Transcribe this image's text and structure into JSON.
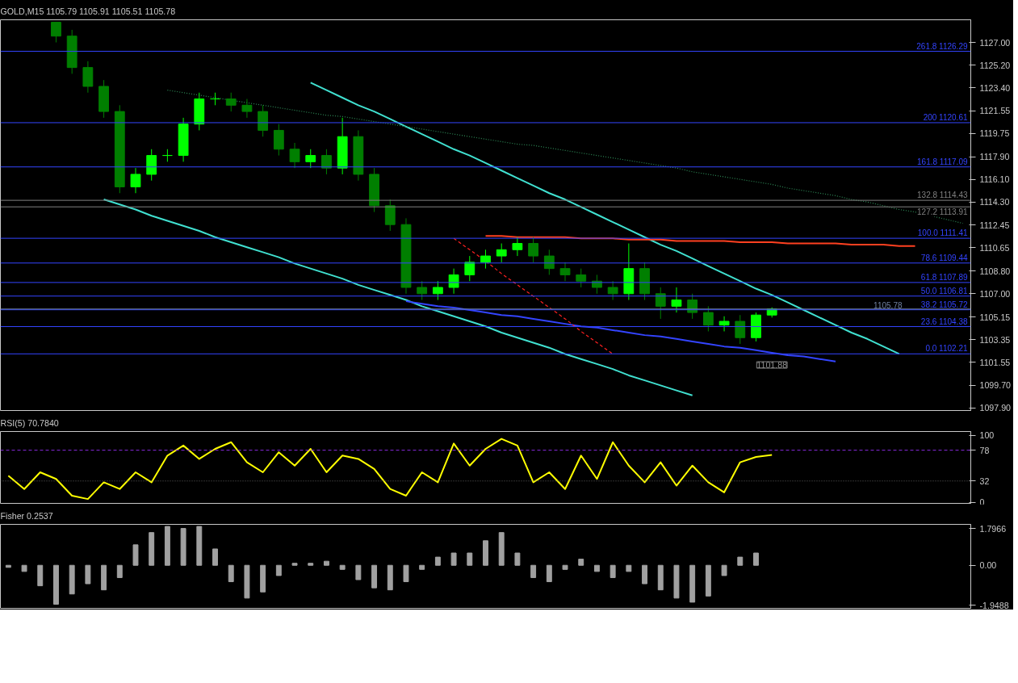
{
  "chart_data": [
    {
      "type": "candlestick",
      "title": "GOLD,M15 1105.79 1105.91 1105.51 1105.78",
      "colors": [
        null,
        null,
        null,
        "#007f00",
        "#007f00",
        "#007f00",
        "#007f00",
        "#007f00",
        "#00ff00",
        "#00ff00",
        "#00ff00",
        "#00ff00",
        "#00ff00",
        "#00ff00",
        "#007f00",
        "#007f00",
        "#007f00",
        "#007f00",
        "#007f00",
        "#00ff00",
        "#007f00",
        "#00ff00",
        "#007f00",
        "#007f00",
        "#007f00",
        "#007f00",
        "#007f00",
        "#00ff00",
        "#00ff00",
        "#00ff00",
        "#00ff00",
        "#00ff00",
        "#00ff00",
        "#007f00",
        "#007f00",
        "#007f00",
        "#007f00",
        "#007f00",
        "#007f00",
        "#00ff00",
        "#007f00",
        "#007f00",
        "#00ff00",
        "#007f00",
        "#007f00",
        "#00ff00",
        "#007f00",
        "#00ff00",
        "#00ff00",
        null,
        null,
        null,
        null,
        null,
        null,
        null,
        null,
        null,
        null,
        null,
        null
      ],
      "categories": [
        null,
        null,
        null,
        null,
        null,
        null,
        null,
        null,
        null,
        null,
        null,
        null,
        null,
        null,
        null,
        null,
        null,
        null,
        null,
        null,
        null,
        null,
        null,
        null,
        null,
        null,
        null,
        null,
        null,
        null,
        null,
        null,
        null,
        null,
        null,
        null,
        null,
        null,
        null,
        null,
        null,
        null,
        null,
        null,
        null,
        null,
        null,
        null,
        null,
        null,
        null,
        null,
        null,
        null,
        null,
        null,
        null,
        null,
        null,
        null,
        null
      ],
      "ohlc": [
        null,
        null,
        null,
        [
          1128.6,
          1128.6,
          1127.0,
          1127.5
        ],
        [
          1127.5,
          1128.0,
          1124.5,
          1125.0
        ],
        [
          1125.0,
          1125.5,
          1123.0,
          1123.5
        ],
        [
          1123.5,
          1124.0,
          1121.0,
          1121.5
        ],
        [
          1121.5,
          1122.0,
          1115.0,
          1115.5
        ],
        [
          1115.5,
          1117.0,
          1115.0,
          1116.5
        ],
        [
          1116.5,
          1118.5,
          1116.0,
          1118.0
        ],
        [
          1118.0,
          1118.5,
          1117.5,
          1118.0
        ],
        [
          1118.0,
          1121.0,
          1117.5,
          1120.5
        ],
        [
          1120.5,
          1123.0,
          1120.0,
          1122.5
        ],
        [
          1122.5,
          1123.0,
          1122.0,
          1122.5
        ],
        [
          1122.5,
          1123.0,
          1121.5,
          1122.0
        ],
        [
          1122.0,
          1122.5,
          1121.0,
          1121.5
        ],
        [
          1121.5,
          1122.0,
          1119.5,
          1120.0
        ],
        [
          1120.0,
          1120.5,
          1118.0,
          1118.5
        ],
        [
          1118.5,
          1119.0,
          1117.0,
          1117.5
        ],
        [
          1117.5,
          1118.5,
          1117.0,
          1118.0
        ],
        [
          1118.0,
          1118.5,
          1116.5,
          1117.0
        ],
        [
          1117.0,
          1121.0,
          1116.5,
          1119.5
        ],
        [
          1119.5,
          1120.0,
          1116.0,
          1116.5
        ],
        [
          1116.5,
          1117.0,
          1113.5,
          1114.0
        ],
        [
          1114.0,
          1114.5,
          1112.0,
          1112.5
        ],
        [
          1112.5,
          1113.0,
          1107.0,
          1107.5
        ],
        [
          1107.5,
          1108.0,
          1106.5,
          1107.0
        ],
        [
          1107.0,
          1108.0,
          1106.5,
          1107.5
        ],
        [
          1107.5,
          1109.0,
          1107.0,
          1108.5
        ],
        [
          1108.5,
          1110.0,
          1108.0,
          1109.5
        ],
        [
          1109.5,
          1110.5,
          1109.0,
          1110.0
        ],
        [
          1110.0,
          1111.0,
          1109.5,
          1110.5
        ],
        [
          1110.5,
          1111.5,
          1110.0,
          1111.0
        ],
        [
          1111.0,
          1111.5,
          1109.5,
          1110.0
        ],
        [
          1110.0,
          1110.5,
          1108.5,
          1109.0
        ],
        [
          1109.0,
          1109.5,
          1108.0,
          1108.5
        ],
        [
          1108.5,
          1109.0,
          1107.5,
          1108.0
        ],
        [
          1108.0,
          1108.5,
          1107.0,
          1107.5
        ],
        [
          1107.5,
          1108.0,
          1106.5,
          1107.0
        ],
        [
          1107.0,
          1111.0,
          1106.5,
          1109.0
        ],
        [
          1109.0,
          1109.5,
          1106.5,
          1107.0
        ],
        [
          1107.0,
          1107.5,
          1105.0,
          1106.0
        ],
        [
          1106.0,
          1107.5,
          1105.5,
          1106.5
        ],
        [
          1106.5,
          1107.0,
          1105.0,
          1105.5
        ],
        [
          1105.5,
          1106.0,
          1104.0,
          1104.5
        ],
        [
          1104.5,
          1105.2,
          1104.0,
          1104.8
        ],
        [
          1104.8,
          1105.3,
          1103.0,
          1103.5
        ],
        [
          1103.5,
          1105.5,
          1103.2,
          1105.3
        ],
        [
          1105.3,
          1105.91,
          1105.1,
          1105.78
        ],
        null,
        null,
        null,
        null,
        null,
        null,
        null,
        null,
        null,
        null,
        null,
        null
      ],
      "series": [
        {
          "type": "line",
          "color": "#40e0d0",
          "values": [
            null,
            null,
            null,
            null,
            null,
            null,
            null,
            null,
            null,
            null,
            null,
            null,
            null,
            null,
            null,
            null,
            null,
            null,
            null,
            1123.8,
            1123.2,
            1122.6,
            1122.0,
            1121.5,
            1120.9,
            1120.3,
            1119.7,
            1119.1,
            1118.5,
            1118.0,
            1117.4,
            1116.8,
            1116.2,
            1115.6,
            1115.0,
            1114.5,
            1113.9,
            1113.3,
            1112.7,
            1112.1,
            1111.5,
            1110.9,
            1110.4,
            1109.8,
            1109.2,
            1108.6,
            1108.0,
            1107.4,
            1106.9,
            1106.3,
            1105.7,
            1105.1,
            1104.5,
            1103.9,
            1103.4,
            1102.8,
            1102.2,
            null,
            null,
            null,
            null
          ]
        },
        {
          "type": "line",
          "color": "#40e0d0",
          "values": [
            null,
            null,
            null,
            null,
            null,
            null,
            1114.5,
            1114.1,
            1113.7,
            1113.2,
            1112.8,
            1112.4,
            1112.0,
            1111.5,
            1111.1,
            1110.7,
            1110.3,
            1109.9,
            1109.4,
            1109.0,
            1108.6,
            1108.2,
            1107.7,
            1107.3,
            1106.9,
            1106.5,
            1106.0,
            1105.6,
            1105.2,
            1104.8,
            1104.4,
            1103.9,
            1103.5,
            1103.1,
            1102.7,
            1102.2,
            1101.8,
            1101.4,
            1101.0,
            1100.5,
            1100.1,
            1099.7,
            1099.3,
            1098.9,
            null,
            null,
            null,
            null,
            null,
            null,
            null,
            null,
            null,
            null,
            null,
            null,
            null,
            null,
            null,
            null,
            null
          ]
        },
        {
          "type": "line",
          "color": "#3344ff",
          "values": [
            null,
            null,
            null,
            null,
            null,
            null,
            null,
            null,
            null,
            null,
            null,
            null,
            null,
            null,
            null,
            null,
            null,
            null,
            null,
            null,
            null,
            null,
            null,
            null,
            null,
            1106.4,
            1106.2,
            1106.0,
            1105.9,
            1105.7,
            1105.5,
            1105.3,
            1105.2,
            1105.0,
            1104.8,
            1104.6,
            1104.4,
            1104.3,
            1104.1,
            1103.9,
            1103.7,
            1103.6,
            1103.4,
            1103.2,
            1103.0,
            1102.8,
            1102.7,
            1102.5,
            1102.3,
            1102.1,
            1102.0,
            1101.8,
            1101.6,
            null,
            null,
            null,
            null,
            null,
            null,
            null,
            null
          ]
        },
        {
          "type": "line",
          "color": "#ff4020",
          "values": [
            null,
            null,
            null,
            null,
            null,
            null,
            null,
            null,
            null,
            null,
            null,
            null,
            null,
            null,
            null,
            null,
            null,
            null,
            null,
            null,
            null,
            null,
            null,
            null,
            null,
            null,
            null,
            null,
            null,
            null,
            1111.6,
            1111.6,
            1111.5,
            1111.5,
            1111.5,
            1111.5,
            1111.4,
            1111.4,
            1111.4,
            1111.3,
            1111.3,
            1111.3,
            1111.2,
            1111.2,
            1111.2,
            1111.2,
            1111.1,
            1111.1,
            1111.1,
            1111.0,
            1111.0,
            1111.0,
            1111.0,
            1110.9,
            1110.9,
            1110.9,
            1110.8,
            1110.8,
            null,
            null,
            null
          ]
        },
        {
          "type": "line",
          "color": "#2e8b57",
          "line_style": "dotted",
          "values": [
            null,
            null,
            null,
            null,
            null,
            null,
            null,
            null,
            null,
            null,
            1123.2,
            1123.0,
            1122.8,
            1122.6,
            1122.4,
            1122.2,
            1122.0,
            1121.8,
            1121.6,
            1121.4,
            1121.2,
            1121.1,
            1120.9,
            1120.7,
            1120.5,
            1120.3,
            1120.1,
            1119.9,
            1119.7,
            1119.5,
            1119.3,
            1119.1,
            1118.9,
            1118.8,
            1118.6,
            1118.4,
            1118.2,
            1118.0,
            1117.8,
            1117.6,
            1117.4,
            1117.2,
            1117.0,
            1116.7,
            1116.5,
            1116.3,
            1116.1,
            1115.9,
            1115.7,
            1115.4,
            1115.2,
            1115.0,
            1114.8,
            1114.5,
            1114.3,
            1114.0,
            1113.7,
            1113.5,
            1113.2,
            1112.9,
            1112.6
          ]
        },
        {
          "type": "line",
          "color": "#ff2020",
          "line_style": "dashed",
          "values": [
            null,
            null,
            null,
            null,
            null,
            null,
            null,
            null,
            null,
            null,
            null,
            null,
            null,
            null,
            null,
            null,
            null,
            null,
            null,
            null,
            null,
            null,
            null,
            null,
            null,
            null,
            null,
            null,
            1111.4,
            1110.5,
            1109.6,
            1108.6,
            1107.7,
            1106.8,
            1105.9,
            1105.0,
            1104.0,
            1103.1,
            1102.2,
            null,
            null,
            null,
            null,
            null,
            null,
            null,
            null,
            null,
            null,
            null,
            null,
            null,
            null,
            null,
            null,
            null,
            null,
            null,
            null,
            null,
            null
          ]
        }
      ],
      "ref_lines": [
        {
          "axis": "y",
          "value": 1126.29,
          "label": "261.8 1126.29",
          "color": "#3344ff"
        },
        {
          "axis": "y",
          "value": 1120.61,
          "label": "200 1120.61",
          "color": "#3344ff"
        },
        {
          "axis": "y",
          "value": 1117.09,
          "label": "161.8 1117.09",
          "color": "#3344ff"
        },
        {
          "axis": "y",
          "value": 1114.43,
          "label": "132.8 1114.43",
          "color": "#808080"
        },
        {
          "axis": "y",
          "value": 1113.91,
          "label": "127.2 1113.91",
          "color": "#808080"
        },
        {
          "axis": "y",
          "value": 1111.41,
          "label": "100.0 1111.41",
          "color": "#3344ff"
        },
        {
          "axis": "y",
          "value": 1109.44,
          "label": "78.6 1109.44",
          "color": "#3344ff"
        },
        {
          "axis": "y",
          "value": 1107.89,
          "label": "61.8 1107.89",
          "color": "#3344ff"
        },
        {
          "axis": "y",
          "value": 1106.81,
          "label": "50.0 1106.81",
          "color": "#3344ff"
        },
        {
          "axis": "y",
          "value": 1105.72,
          "label": "38.2 1105.72",
          "color": "#3344ff"
        },
        {
          "axis": "y",
          "value": 1104.38,
          "label": "23.6 1104.38",
          "color": "#3344ff"
        },
        {
          "axis": "y",
          "value": 1102.21,
          "label": "0.0 1102.21",
          "color": "#3344ff"
        },
        {
          "axis": "y",
          "value": 1105.78,
          "label": "1105.78",
          "color": "#6e7fa0"
        }
      ],
      "annotations": [
        "1101.88"
      ],
      "ylim": [
        1097.7,
        1128.8
      ],
      "yticks": [
        {
          "value": 1097.9,
          "label": "1097.90"
        },
        {
          "value": 1099.7,
          "label": "1099.70"
        },
        {
          "value": 1101.55,
          "label": "1101.55"
        },
        {
          "value": 1103.35,
          "label": "1103.35"
        },
        {
          "value": 1105.15,
          "label": "1105.15"
        },
        {
          "value": 1107.0,
          "label": "1107.00"
        },
        {
          "value": 1108.8,
          "label": "1108.80"
        },
        {
          "value": 1110.65,
          "label": "1110.65"
        },
        {
          "value": 1112.45,
          "label": "1112.45"
        },
        {
          "value": 1114.3,
          "label": "1114.30"
        },
        {
          "value": 1116.1,
          "label": "1116.10"
        },
        {
          "value": 1117.9,
          "label": "1117.90"
        },
        {
          "value": 1119.75,
          "label": "1119.75"
        },
        {
          "value": 1121.55,
          "label": "1121.55"
        },
        {
          "value": 1123.4,
          "label": "1123.40"
        },
        {
          "value": 1125.2,
          "label": "1125.20"
        },
        {
          "value": 1127.0,
          "label": "1127.00"
        }
      ],
      "tick_labels": "y"
    },
    {
      "type": "line",
      "title": "RSI(5) 70.7840",
      "categories": [
        null,
        null,
        null,
        null,
        null,
        null,
        null,
        null,
        null,
        null,
        null,
        null,
        null,
        null,
        null,
        null,
        null,
        null,
        null,
        null,
        null,
        null,
        null,
        null,
        null,
        null,
        null,
        null,
        null,
        null,
        null,
        null,
        null,
        null,
        null,
        null,
        null,
        null,
        null,
        null,
        null,
        null,
        null,
        null,
        null,
        null,
        null,
        null,
        null,
        null,
        null,
        null,
        null,
        null,
        null,
        null,
        null,
        null,
        null,
        null,
        null
      ],
      "series": [
        {
          "color": "#ffff00",
          "values": [
            40,
            20,
            45,
            35,
            10,
            5,
            30,
            20,
            45,
            30,
            70,
            85,
            65,
            80,
            90,
            60,
            45,
            75,
            55,
            80,
            45,
            70,
            65,
            50,
            20,
            10,
            45,
            30,
            88,
            55,
            80,
            95,
            85,
            30,
            45,
            20,
            70,
            35,
            90,
            55,
            30,
            60,
            25,
            55,
            30,
            15,
            60,
            68,
            71,
            null,
            null,
            null,
            null,
            null,
            null,
            null,
            null,
            null,
            null,
            null,
            null
          ]
        }
      ],
      "ref_lines": [
        {
          "axis": "y",
          "value": 78,
          "color": "#8a2be2",
          "line_style": "dashed"
        },
        {
          "axis": "y",
          "value": 32,
          "color": "#606060",
          "line_style": "dotted"
        }
      ],
      "ylim": [
        -1.5,
        106
      ],
      "yticks": [
        0,
        32,
        78,
        100
      ],
      "tick_labels": "y"
    },
    {
      "type": "bar",
      "title": "Fisher 0.2537",
      "color": "#a0a0a0",
      "categories": [
        null,
        null,
        null,
        null,
        null,
        null,
        null,
        null,
        null,
        null,
        null,
        null,
        null,
        null,
        null,
        null,
        null,
        null,
        null,
        null,
        null,
        null,
        null,
        null,
        null,
        null,
        null,
        null,
        null,
        null,
        null,
        null,
        null,
        null,
        null,
        null,
        null,
        null,
        null,
        null,
        null,
        null,
        null,
        null,
        null,
        null,
        null,
        null,
        null,
        null,
        null,
        null,
        null,
        null,
        null,
        null,
        null,
        null,
        null,
        null,
        null
      ],
      "values": [
        -0.1,
        -0.3,
        -1.0,
        -1.9,
        -1.4,
        -0.9,
        -1.2,
        -0.6,
        1.0,
        1.6,
        1.9,
        1.8,
        1.9,
        0.8,
        -0.8,
        -1.6,
        -1.3,
        -0.5,
        0.1,
        0.1,
        0.2,
        -0.2,
        -0.7,
        -1.1,
        -1.2,
        -0.8,
        -0.2,
        0.4,
        0.6,
        0.6,
        1.2,
        1.6,
        0.6,
        -0.6,
        -0.8,
        -0.2,
        0.3,
        -0.3,
        -0.6,
        -0.3,
        -0.9,
        -1.2,
        -1.6,
        -1.8,
        -1.5,
        -0.5,
        0.4,
        0.6,
        null,
        null,
        null,
        null,
        null,
        null,
        null,
        null,
        null,
        null,
        null,
        null,
        null
      ],
      "ylim": [
        -2.1,
        2.0
      ],
      "yticks": [
        {
          "value": 1.7966,
          "label": "1.7966"
        },
        {
          "value": 0,
          "label": "0.00"
        },
        {
          "value": -1.9488,
          "label": "-1.9488"
        }
      ],
      "tick_labels": "y"
    }
  ]
}
